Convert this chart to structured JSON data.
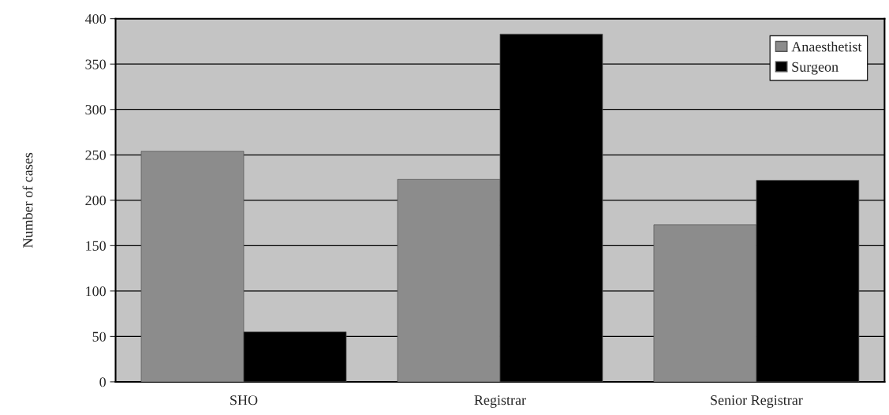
{
  "chart_data": {
    "type": "bar",
    "ylabel": "Number of cases",
    "categories": [
      "SHO",
      "Registrar",
      "Senior Registrar"
    ],
    "series": [
      {
        "name": "Anaesthetist",
        "color": "#8c8c8c",
        "values": [
          254,
          223,
          173
        ]
      },
      {
        "name": "Surgeon",
        "color": "#000000",
        "values": [
          55,
          383,
          222
        ]
      }
    ],
    "ylim": [
      0,
      400
    ],
    "yticks": [
      0,
      50,
      100,
      150,
      200,
      250,
      300,
      350,
      400
    ],
    "grid": "y",
    "legend": "top right"
  }
}
